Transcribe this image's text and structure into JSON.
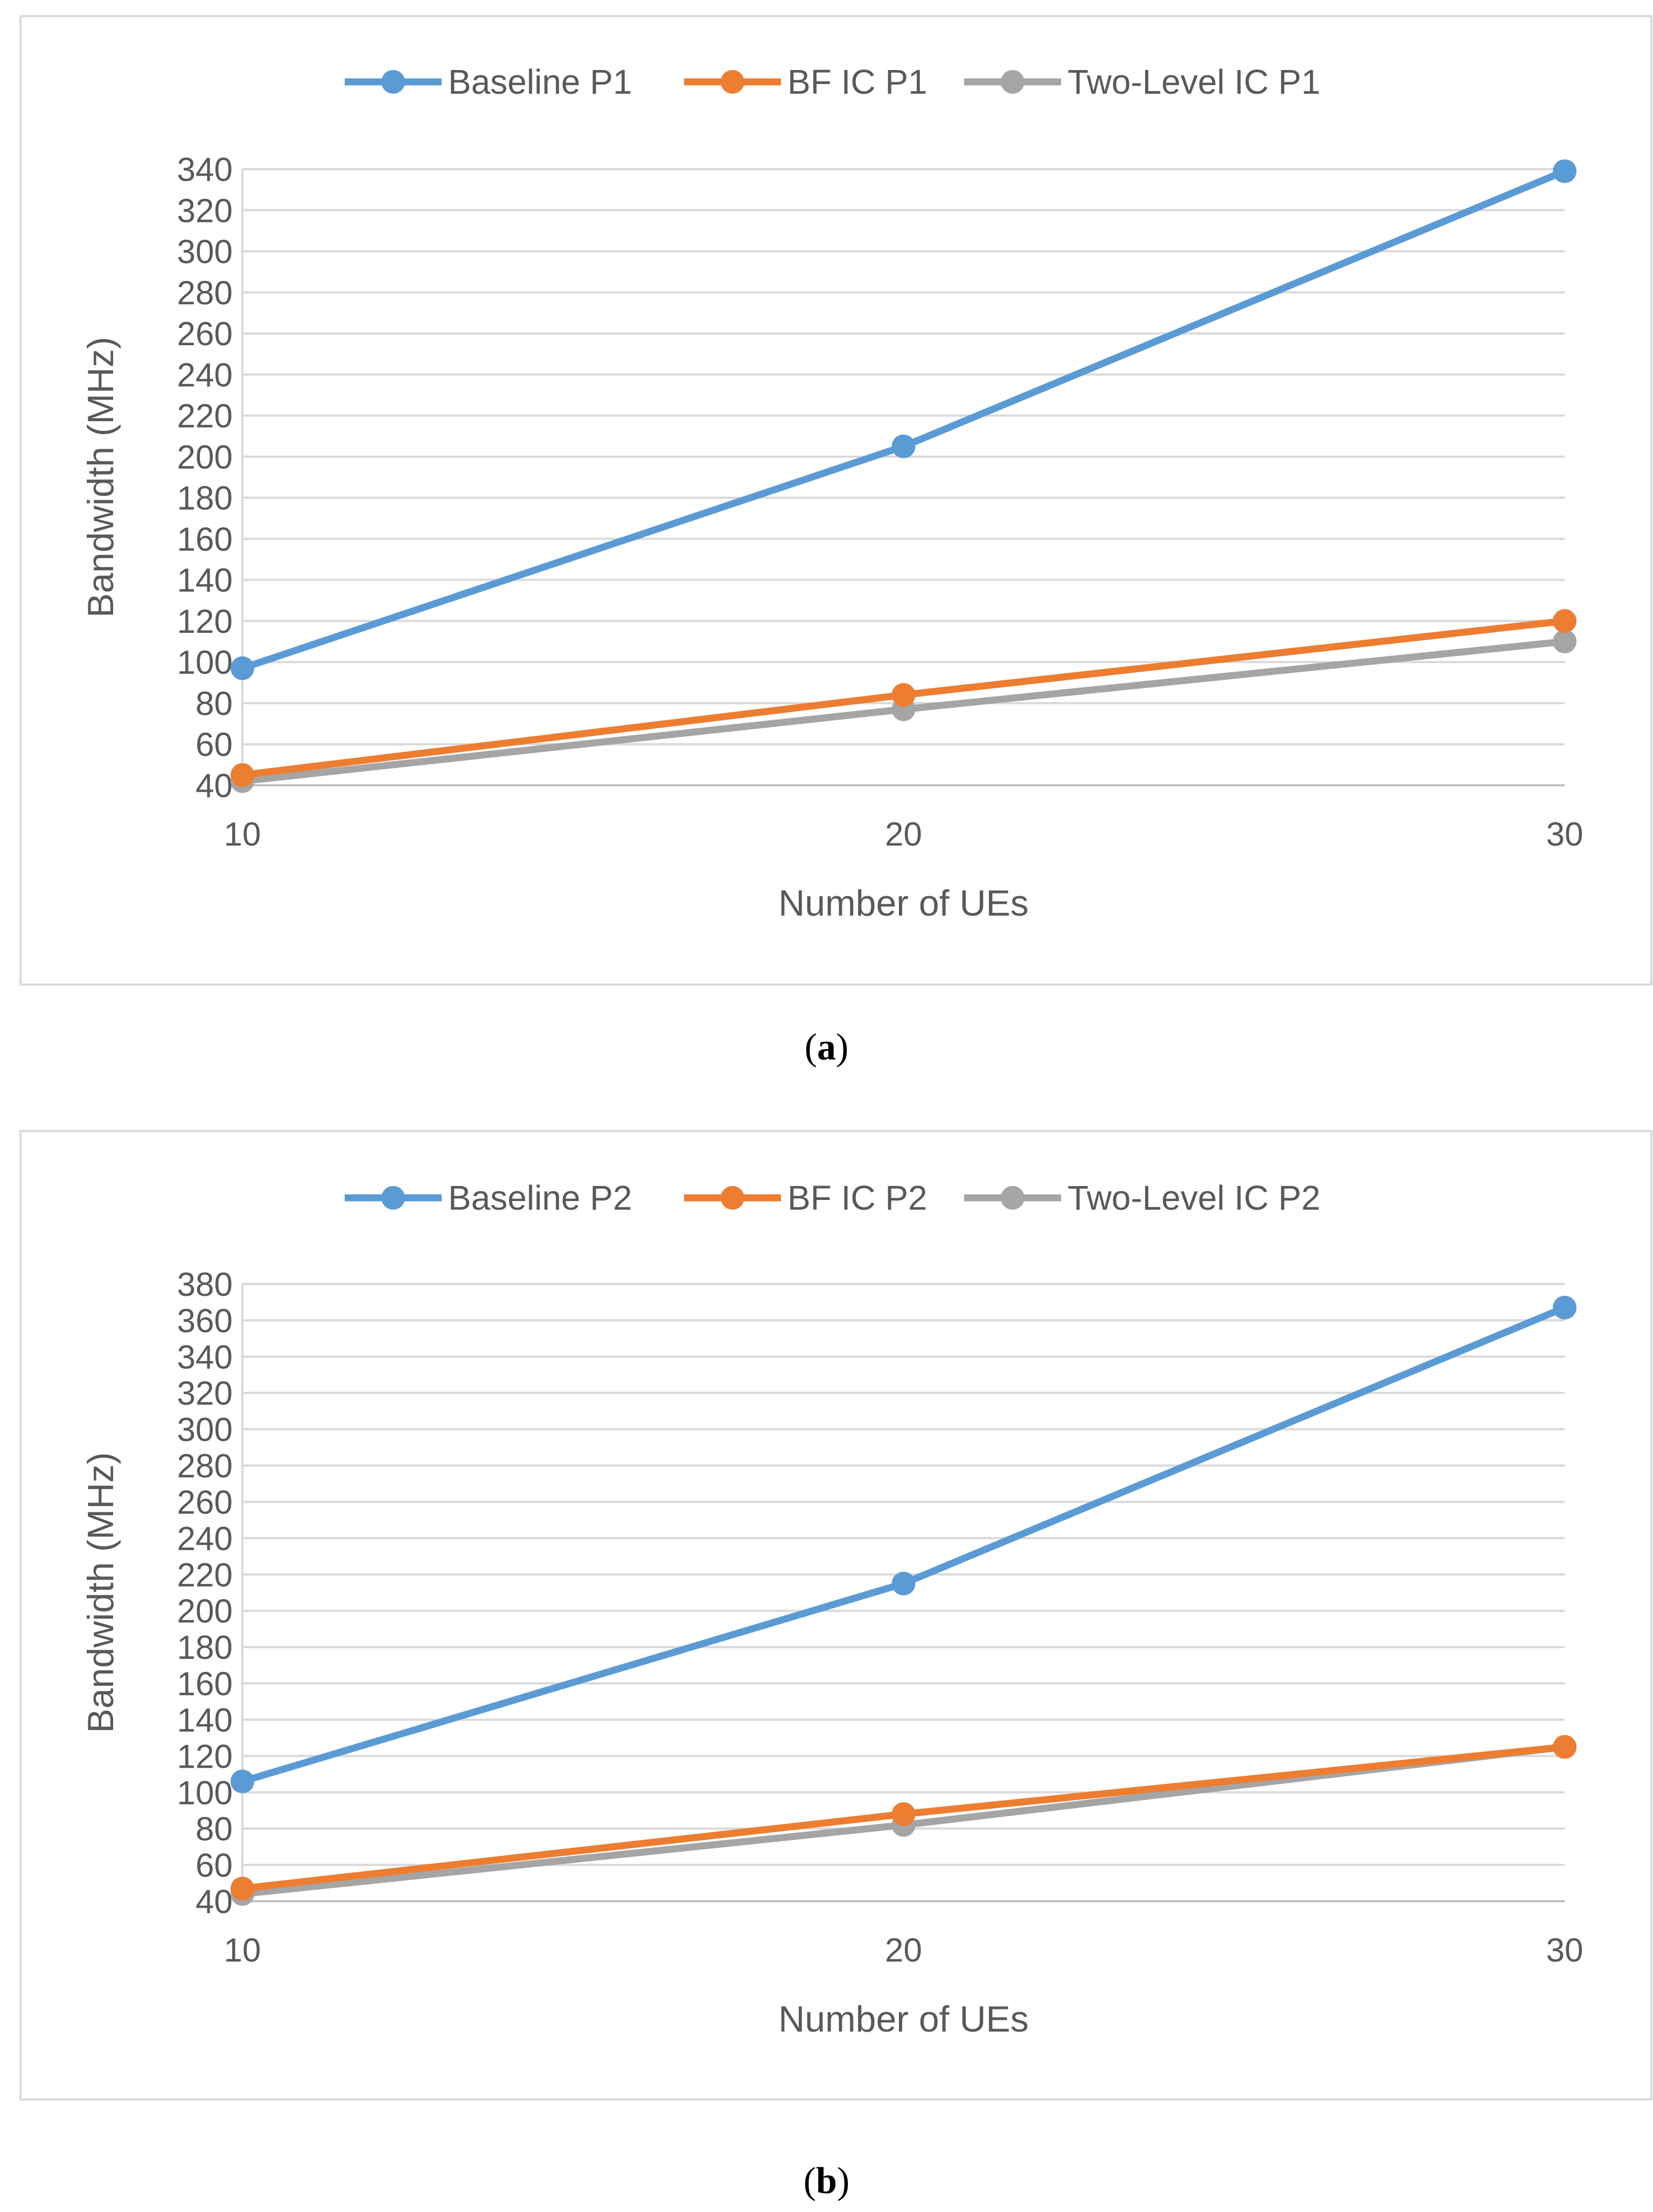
{
  "chart_data": [
    {
      "type": "line",
      "panel": "a",
      "caption_letter": "a",
      "xlabel": "Number of UEs",
      "ylabel": "Bandwidth (MHz)",
      "x": [
        10,
        20,
        30
      ],
      "ylim": [
        40,
        340
      ],
      "yticks": [
        40,
        60,
        80,
        100,
        120,
        140,
        160,
        180,
        200,
        220,
        240,
        260,
        280,
        300,
        320,
        340
      ],
      "legend_position": "top-center",
      "grid": true,
      "series": [
        {
          "name": "Baseline P1",
          "color": "#5b9bd5",
          "values": [
            97,
            205,
            339
          ]
        },
        {
          "name": "BF IC P1",
          "color": "#ed7d31",
          "values": [
            45,
            84,
            120
          ]
        },
        {
          "name": "Two-Level IC P1",
          "color": "#a5a5a5",
          "values": [
            42,
            77,
            110
          ]
        }
      ]
    },
    {
      "type": "line",
      "panel": "b",
      "caption_letter": "b",
      "xlabel": "Number of UEs",
      "ylabel": "Bandwidth (MHz)",
      "x": [
        10,
        20,
        30
      ],
      "ylim": [
        40,
        380
      ],
      "yticks": [
        40,
        60,
        80,
        100,
        120,
        140,
        160,
        180,
        200,
        220,
        240,
        260,
        280,
        300,
        320,
        340,
        360,
        380
      ],
      "legend_position": "top-center",
      "grid": true,
      "series": [
        {
          "name": "Baseline P2",
          "color": "#5b9bd5",
          "values": [
            106,
            215,
            367
          ]
        },
        {
          "name": "BF IC P2",
          "color": "#ed7d31",
          "values": [
            47,
            88,
            125
          ]
        },
        {
          "name": "Two-Level IC P2",
          "color": "#a5a5a5",
          "values": [
            44,
            82,
            125
          ]
        }
      ]
    }
  ]
}
